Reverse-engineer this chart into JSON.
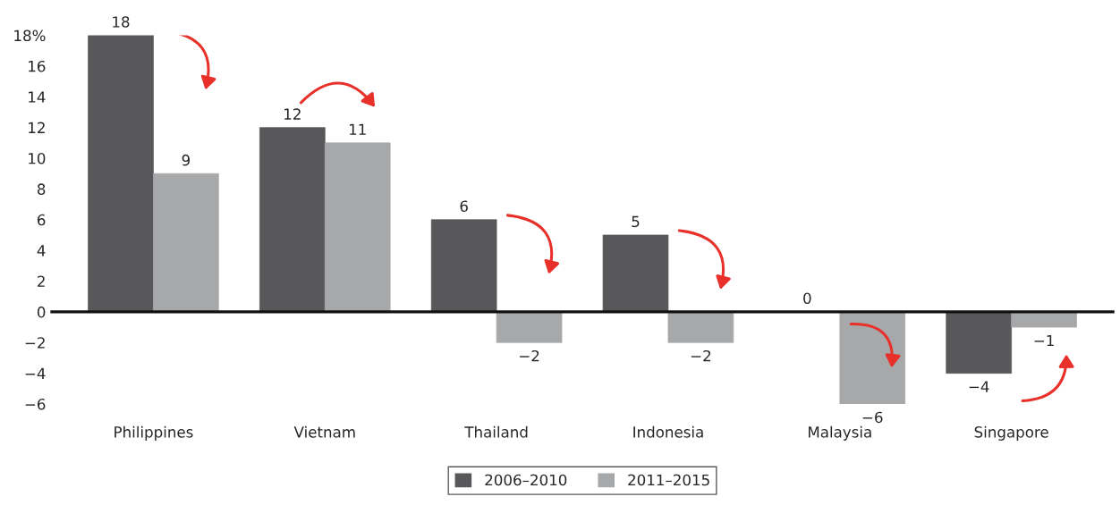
{
  "chart_data": {
    "type": "bar",
    "categories": [
      "Philippines",
      "Vietnam",
      "Thailand",
      "Indonesia",
      "Malaysia",
      "Singapore"
    ],
    "series": [
      {
        "name": "2006–2010",
        "color": "#58585a",
        "values": [
          18,
          12,
          6,
          5,
          0,
          -4
        ],
        "value_labels": [
          "18",
          "12",
          "6",
          "5",
          "0",
          "−4"
        ]
      },
      {
        "name": "2011–2015",
        "color": "#a7a8aa",
        "values": [
          9,
          11,
          -2,
          -2,
          -6,
          -1
        ],
        "value_labels": [
          "9",
          "11",
          "−2",
          "−2",
          "−6",
          "−1"
        ]
      }
    ],
    "ylim": [
      -6,
      18
    ],
    "yticks": [
      {
        "value": 18,
        "label": "18%"
      },
      16,
      14,
      12,
      10,
      8,
      6,
      4,
      2,
      0,
      {
        "value": -2,
        "label": "−2"
      },
      {
        "value": -4,
        "label": "−4"
      },
      {
        "value": -6,
        "label": "−6"
      }
    ],
    "ref_lines": [
      {
        "axis": "y",
        "value": 0,
        "color": "#111111"
      }
    ],
    "grid": false,
    "legend": "bottom"
  }
}
